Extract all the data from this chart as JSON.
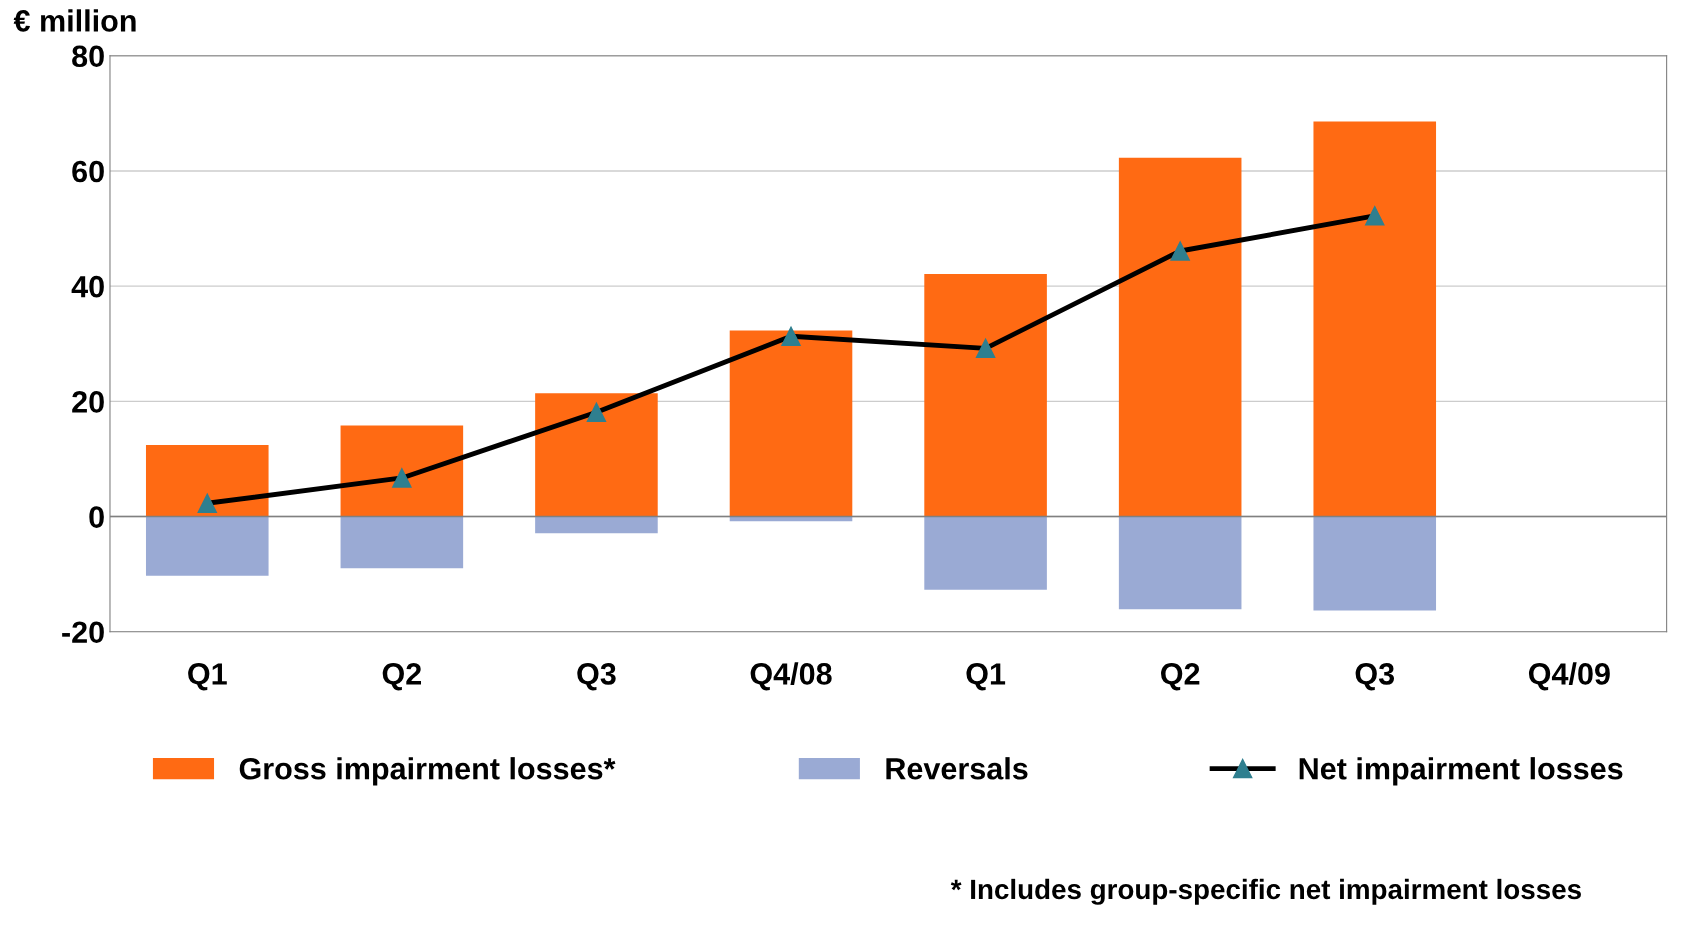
{
  "chart_data": {
    "type": "bar",
    "ylabel": "€ million",
    "categories": [
      "Q1",
      "Q2",
      "Q3",
      "Q4/08",
      "Q1",
      "Q2",
      "Q3",
      "Q4/09"
    ],
    "series": [
      {
        "name": "Gross impairment losses*",
        "color": "#ff6a13",
        "values": [
          12.4,
          15.8,
          21.4,
          32.3,
          42.1,
          62.3,
          68.6,
          null
        ]
      },
      {
        "name": "Reversals",
        "color": "#9aaad4",
        "values": [
          -10.3,
          -9.0,
          -2.9,
          -0.8,
          -12.7,
          -16.1,
          -16.3,
          null
        ]
      },
      {
        "name": "Net impairment losses",
        "type": "line",
        "color": "#000000",
        "marker": "triangle",
        "values": [
          2.3,
          6.7,
          18.1,
          31.3,
          29.2,
          46.1,
          52.2,
          null
        ]
      }
    ],
    "stacked": true,
    "ylim": [
      -20,
      80
    ],
    "yticks": [
      -20,
      0,
      20,
      40,
      60,
      80
    ],
    "grid": "y",
    "legend": "bottom",
    "annotations": [
      "* Includes group-specific net impairment losses"
    ]
  }
}
